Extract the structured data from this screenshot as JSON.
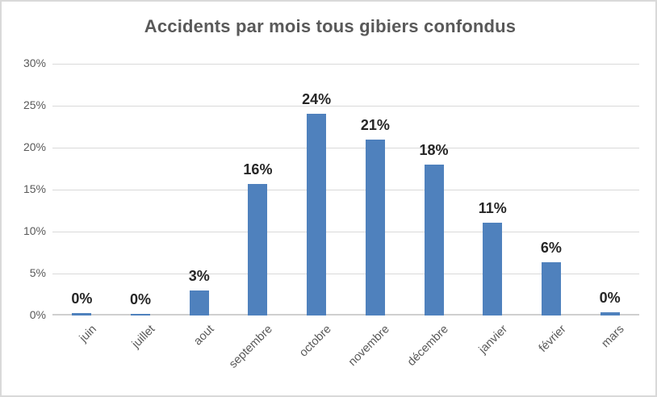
{
  "window": {
    "background": "#ffffff",
    "border_color": "#d9d9d9"
  },
  "chart_data": {
    "type": "bar",
    "title": "Accidents par mois tous gibiers confondus",
    "categories": [
      "juin",
      "juillet",
      "aout",
      "septembre",
      "octobre",
      "novembre",
      "décembre",
      "janvier",
      "février",
      "mars"
    ],
    "values": [
      0.3,
      0.2,
      3.0,
      15.7,
      24.0,
      21.0,
      18.0,
      11.1,
      6.3,
      0.4
    ],
    "data_labels": [
      "0%",
      "0%",
      "3%",
      "16%",
      "24%",
      "21%",
      "18%",
      "11%",
      "6%",
      "0%"
    ],
    "xlabel": "",
    "ylabel": "",
    "y_ticks": [
      "0%",
      "5%",
      "10%",
      "15%",
      "20%",
      "25%",
      "30%"
    ],
    "ylim": [
      0,
      30
    ],
    "y_step": 5,
    "grid": true,
    "legend": "none",
    "x_label_rotation_deg": 45,
    "bar_color": "#4F81BD",
    "gridline_color": "#d9d9d9",
    "axis_line_color": "#cfcfcf",
    "title_color": "#595959",
    "tick_label_color": "#595959",
    "data_label_color": "#262626"
  }
}
